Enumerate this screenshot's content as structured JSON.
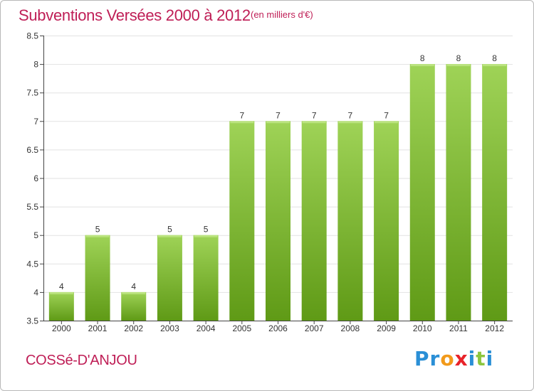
{
  "header": {
    "title": "Subventions Versées 2000 à 2012",
    "unit": "(en milliers d'€)"
  },
  "footer": {
    "commune": "COSSé-D'ANJOU",
    "logo_letters": [
      "P",
      "r",
      "o",
      "x",
      "i",
      "t",
      "i"
    ],
    "logo_colors": [
      "#2a8fd6",
      "#2a8fd6",
      "#f29a1a",
      "#e8232a",
      "#2a8fd6",
      "#8cc63f",
      "#2a8fd6"
    ]
  },
  "colors": {
    "bar_top": "#9fd357",
    "bar_bottom": "#5f9a16",
    "title": "#bf1e56"
  },
  "chart_data": {
    "type": "bar",
    "title": "Subventions Versées 2000 à 2012",
    "categories": [
      "2000",
      "2001",
      "2002",
      "2003",
      "2004",
      "2005",
      "2006",
      "2007",
      "2008",
      "2009",
      "2010",
      "2011",
      "2012"
    ],
    "values": [
      4,
      5,
      4,
      5,
      5,
      7,
      7,
      7,
      7,
      7,
      8,
      8,
      8
    ],
    "value_labels": [
      "4",
      "5",
      "4",
      "5",
      "5",
      "7",
      "7",
      "7",
      "7",
      "7",
      "8",
      "8",
      "8"
    ],
    "ylim": [
      3.5,
      8.5
    ],
    "yticks": [
      3.5,
      4,
      4.5,
      5,
      5.5,
      6,
      6.5,
      7,
      7.5,
      8,
      8.5
    ],
    "ytick_labels": [
      "3.5",
      "4",
      "4.5",
      "5",
      "5.5",
      "6",
      "6.5",
      "7",
      "7.5",
      "8",
      "8.5"
    ],
    "xlabel": "",
    "ylabel": "",
    "grid": true
  }
}
